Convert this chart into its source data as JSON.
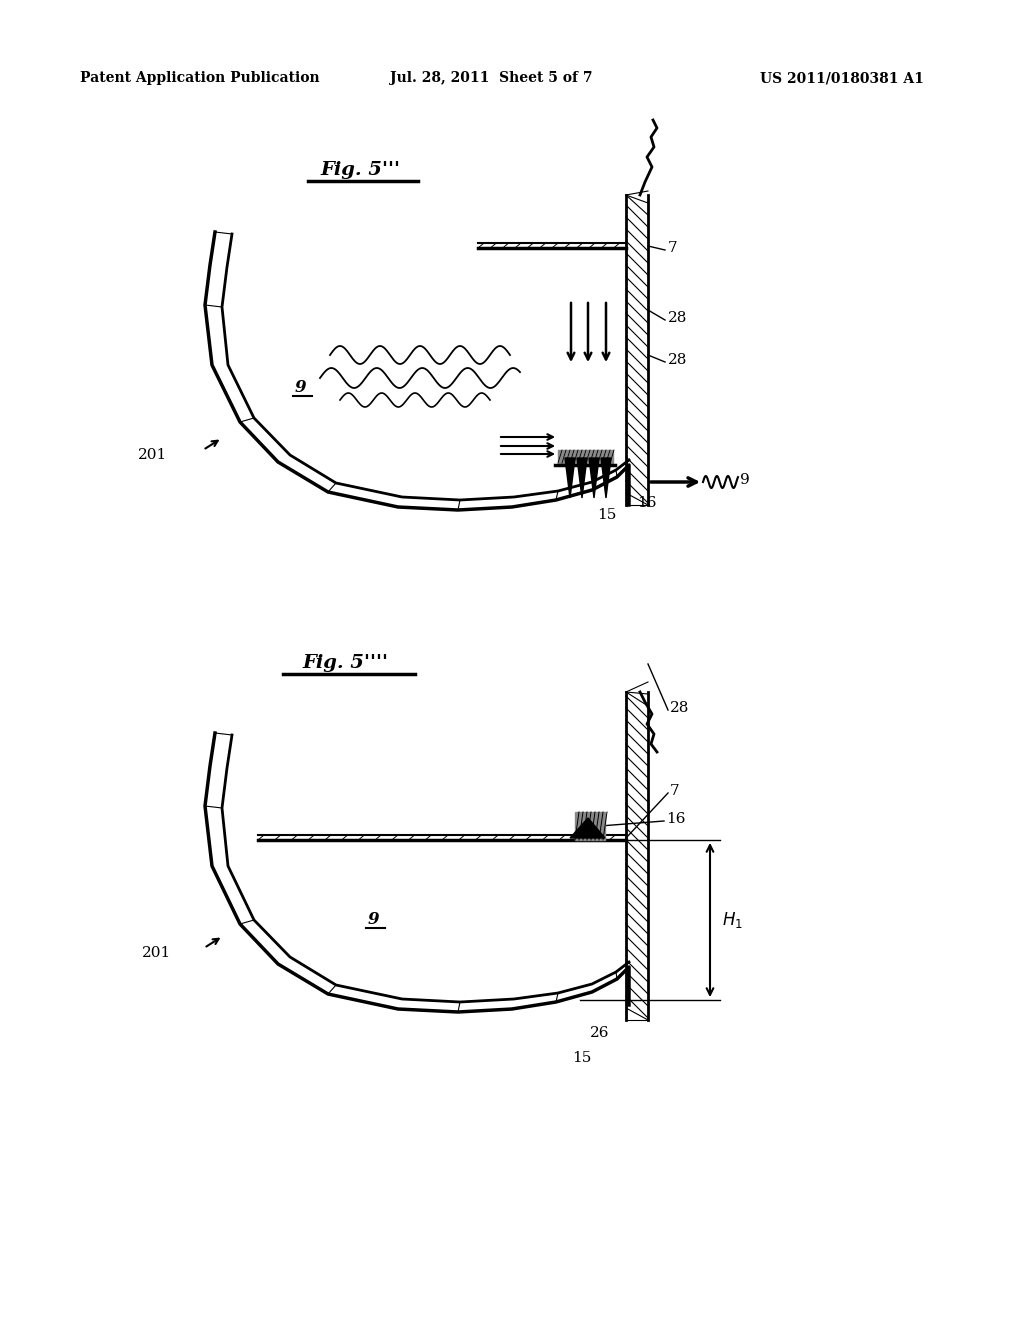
{
  "bg_color": "#ffffff",
  "header_left": "Patent Application Publication",
  "header_center": "Jul. 28, 2011  Sheet 5 of 7",
  "header_right": "US 2011/0180381 A1",
  "fig1_title": "Fig. 5’’’",
  "fig2_title": "Fig. 5’’’’",
  "label_color": "#000000",
  "hatch_color": "#000000",
  "line_color": "#000000"
}
